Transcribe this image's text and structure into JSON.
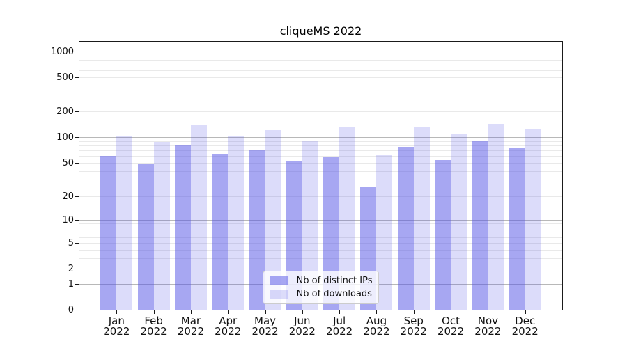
{
  "chart_data": {
    "type": "bar",
    "title": "cliqueMS 2022",
    "categories": [
      "Jan",
      "Feb",
      "Mar",
      "Apr",
      "May",
      "Jun",
      "Jul",
      "Aug",
      "Sep",
      "Oct",
      "Nov",
      "Dec"
    ],
    "category_year": "2022",
    "series": [
      {
        "name": "Nb of distinct IPs",
        "key": "distinct-ips",
        "color_hex_on_white": "#a8a8f2",
        "color": "rgba(80,80,230,0.5)",
        "values": [
          60,
          48,
          82,
          64,
          71,
          53,
          58,
          26,
          77,
          54,
          90,
          75
        ]
      },
      {
        "name": "Nb of downloads",
        "key": "downloads",
        "color_hex_on_white": "#dcdcfa",
        "color": "rgba(80,80,230,0.2)",
        "values": [
          103,
          88,
          138,
          102,
          121,
          91,
          131,
          62,
          132,
          111,
          144,
          126
        ]
      }
    ],
    "yscale": "log1p",
    "y_ticks": [
      0,
      1,
      2,
      5,
      10,
      20,
      50,
      100,
      200,
      500,
      1000
    ],
    "ylim": [
      0,
      1300
    ],
    "xlabel": "",
    "ylabel": "",
    "grid": "horizontal, major and minor (log decades)",
    "legend_position": "lower center inside plot"
  },
  "colors": {
    "background": "#ffffff",
    "spine": "#1a1a1a",
    "grid_major": "#b8b8b8",
    "grid_minor": "#e9e9e9",
    "text": "#111111",
    "legend_border": "#cccccc",
    "legend_background": "rgba(255,255,255,0.8)"
  }
}
